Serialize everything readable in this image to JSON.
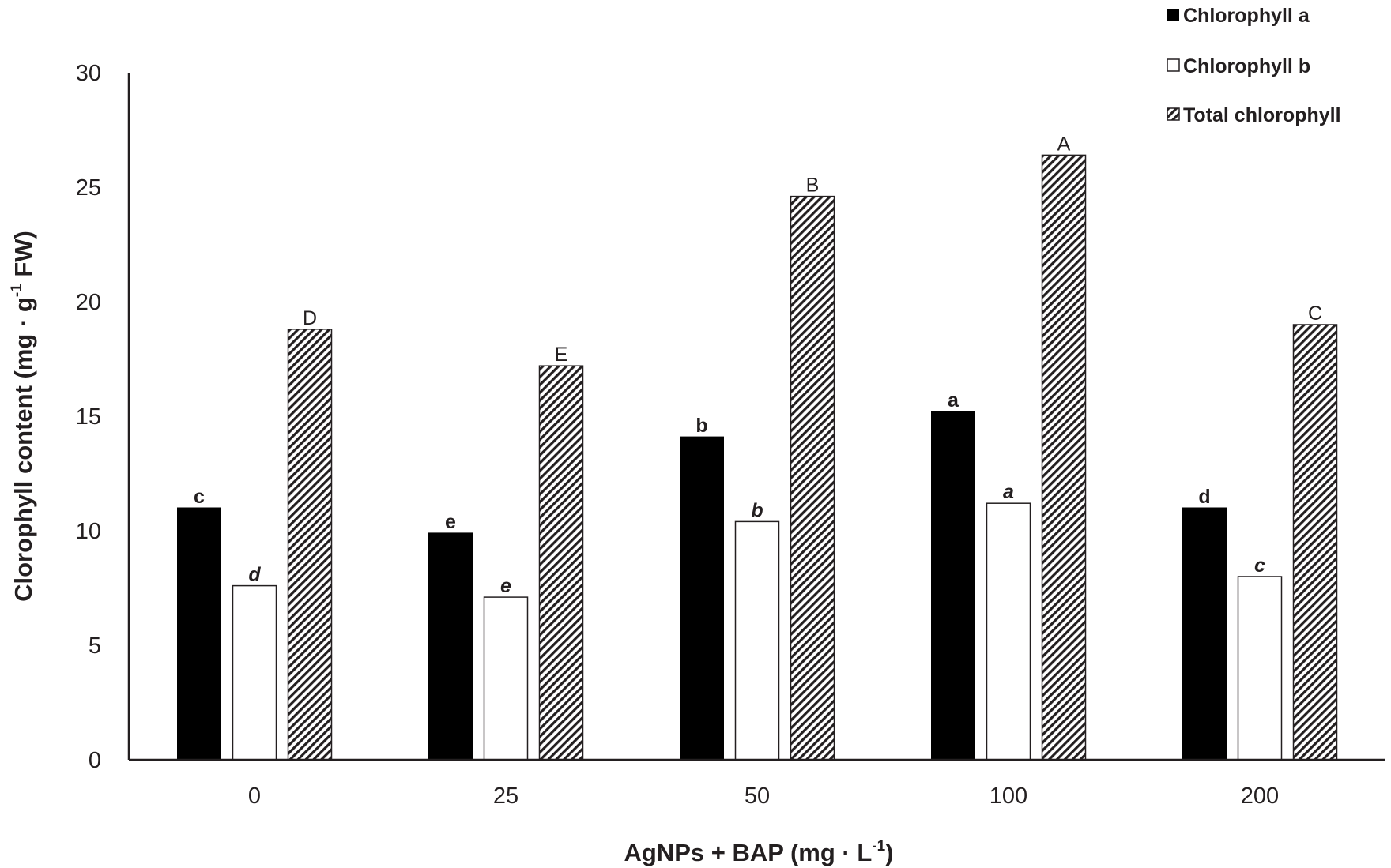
{
  "chart_data": {
    "type": "bar",
    "categories": [
      "0",
      "25",
      "50",
      "100",
      "200"
    ],
    "series": [
      {
        "name": "Chlorophyll a",
        "values": [
          11.0,
          9.9,
          14.1,
          15.2,
          11.0
        ],
        "letters": [
          "c",
          "e",
          "b",
          "a",
          "d"
        ],
        "color": "#000000",
        "fill": "solid"
      },
      {
        "name": "Chlorophyll b",
        "values": [
          7.6,
          7.1,
          10.4,
          11.2,
          8.0
        ],
        "letters": [
          "d",
          "e",
          "b",
          "a",
          "c"
        ],
        "color": "#ffffff",
        "fill": "outline"
      },
      {
        "name": "Total chlorophyll",
        "values": [
          18.8,
          17.2,
          24.6,
          26.4,
          19.0
        ],
        "letters": [
          "D",
          "E",
          "B",
          "A",
          "C"
        ],
        "color": "#231f20",
        "fill": "hatched"
      }
    ],
    "xlabel_main": "AgNPs + BAP (mg · L",
    "xlabel_sup": "-1",
    "xlabel_end": ")",
    "ylabel_main": "Clorophyll content (mg · g",
    "ylabel_sup": "-1",
    "ylabel_end": " FW)",
    "ylim": [
      0,
      30
    ],
    "yticks": [
      "0",
      "5",
      "10",
      "15",
      "20",
      "25",
      "30"
    ],
    "legend_position": "top-right",
    "grid": false
  }
}
